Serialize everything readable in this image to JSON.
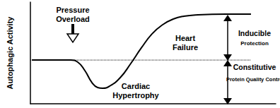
{
  "chart_data": {
    "type": "line",
    "ylabel": "Autophagic Activity",
    "xlim": [
      0,
      100
    ],
    "ylim": [
      0,
      100
    ],
    "xticks": [],
    "yticks": [],
    "tick_labels": false,
    "grid": false,
    "series": [
      {
        "x": [
          0.6,
          16.4,
          19.3,
          22.2,
          25.1,
          27.4,
          29.4,
          32.3,
          36.6,
          40.9,
          45.2,
          49.6,
          53.9,
          58.2,
          62.5,
          68.3,
          79.8,
          89.9
        ],
        "values": [
          43,
          43,
          41,
          32.6,
          20.8,
          16,
          15.3,
          17.4,
          25.7,
          39.6,
          54.9,
          68.8,
          77.8,
          83.3,
          86.1,
          87.5,
          88.2,
          88.2
        ],
        "color": "#000000",
        "line_style": "solid"
      },
      {
        "x": [
          0,
          89.9
        ],
        "values": [
          43,
          43
        ],
        "color": "#000000",
        "line_style": "dotted"
      }
    ],
    "annotations": [
      "Pressure Overload",
      "Cardiac Hypertrophy",
      "Heart Failure",
      "Inducible",
      "Protection",
      "Constitutive",
      "Protein Quality Control"
    ]
  }
}
